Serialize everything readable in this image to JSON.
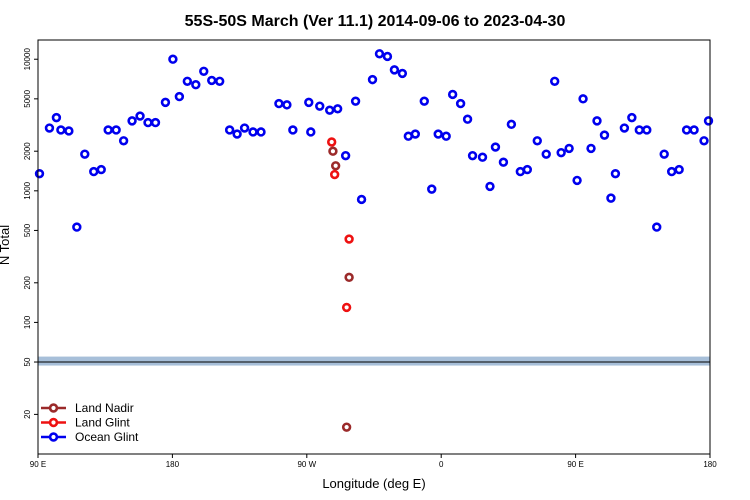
{
  "chart_data": {
    "type": "scatter",
    "title": "55S-50S March (Ver 11.1)   2014-09-06 to 2023-04-30",
    "xlabel": "Longitude (deg E)",
    "ylabel": "N Total",
    "x_scale": "longitude",
    "xlim": [
      -90,
      180
    ],
    "x_ticks": [
      {
        "value": -90,
        "label": "90 E"
      },
      {
        "value": -36,
        "label": "180"
      },
      {
        "value": 18,
        "label": "90 W"
      },
      {
        "value": 72,
        "label": "0"
      },
      {
        "value": 126,
        "label": "90 E"
      },
      {
        "value": 180,
        "label": "180"
      }
    ],
    "y_scale": "log",
    "ylim": [
      10,
      14000
    ],
    "y_ticks": [
      {
        "value": 20,
        "label": "20"
      },
      {
        "value": 50,
        "label": "50"
      },
      {
        "value": 100,
        "label": "100"
      },
      {
        "value": 200,
        "label": "200"
      },
      {
        "value": 500,
        "label": "500"
      },
      {
        "value": 1000,
        "label": "1000"
      },
      {
        "value": 2000,
        "label": "2000"
      },
      {
        "value": 5000,
        "label": "5000"
      },
      {
        "value": 10000,
        "label": "10000"
      }
    ],
    "reference_band": {
      "y_low": 47,
      "y_high": 55,
      "color": "#a7bfd9",
      "line_value": 50,
      "line_color": "#000000"
    },
    "legend_position": "bottom-left",
    "series": [
      {
        "name": "Land Nadir",
        "color": "#9b2a2a",
        "points": [
          [
            28.5,
            2000
          ],
          [
            29.6,
            1550
          ],
          [
            35,
            220
          ],
          [
            34,
            16
          ]
        ]
      },
      {
        "name": "Land Glint",
        "color": "#ee1111",
        "points": [
          [
            28,
            2350
          ],
          [
            29.2,
            1330
          ],
          [
            35,
            430
          ],
          [
            34,
            130
          ]
        ]
      },
      {
        "name": "Ocean Glint",
        "color": "#0000ee",
        "points": [
          [
            -89.4,
            1350
          ],
          [
            -85.4,
            3000
          ],
          [
            -82.6,
            3600
          ],
          [
            -80.8,
            2900
          ],
          [
            -77.6,
            2850
          ],
          [
            -74.4,
            530
          ],
          [
            -71.2,
            1900
          ],
          [
            -67.6,
            1400
          ],
          [
            -64.6,
            1450
          ],
          [
            -61.8,
            2900
          ],
          [
            -58.6,
            2900
          ],
          [
            -55.6,
            2400
          ],
          [
            -52.2,
            3400
          ],
          [
            -49.0,
            3700
          ],
          [
            -45.8,
            3300
          ],
          [
            -42.8,
            3300
          ],
          [
            -38.8,
            4700
          ],
          [
            -35.8,
            10000
          ],
          [
            -33.2,
            5200
          ],
          [
            -30.0,
            6800
          ],
          [
            -26.6,
            6400
          ],
          [
            -23.4,
            8100
          ],
          [
            -20.2,
            6900
          ],
          [
            -17.0,
            6800
          ],
          [
            -13.0,
            2900
          ],
          [
            -10.0,
            2700
          ],
          [
            -7.0,
            3000
          ],
          [
            -3.6,
            2800
          ],
          [
            -0.4,
            2800
          ],
          [
            6.8,
            4600
          ],
          [
            10.0,
            4500
          ],
          [
            12.4,
            2900
          ],
          [
            18.8,
            4700
          ],
          [
            19.6,
            2800
          ],
          [
            23.2,
            4400
          ],
          [
            27.2,
            4100
          ],
          [
            30.4,
            4200
          ],
          [
            33.6,
            1850
          ],
          [
            37.6,
            4800
          ],
          [
            40.0,
            860
          ],
          [
            44.4,
            7000
          ],
          [
            47.2,
            11000
          ],
          [
            50.4,
            10500
          ],
          [
            53.2,
            8300
          ],
          [
            56.4,
            7800
          ],
          [
            58.8,
            2600
          ],
          [
            61.6,
            2700
          ],
          [
            65.2,
            4800
          ],
          [
            68.2,
            1030
          ],
          [
            70.8,
            2700
          ],
          [
            74.0,
            2600
          ],
          [
            76.6,
            5400
          ],
          [
            79.8,
            4600
          ],
          [
            82.6,
            3500
          ],
          [
            84.6,
            1850
          ],
          [
            88.6,
            1800
          ],
          [
            91.6,
            1080
          ],
          [
            93.8,
            2150
          ],
          [
            97.0,
            1650
          ],
          [
            100.2,
            3200
          ],
          [
            103.8,
            1400
          ],
          [
            106.6,
            1450
          ],
          [
            110.6,
            2400
          ],
          [
            114.2,
            1900
          ],
          [
            117.6,
            6800
          ],
          [
            120.2,
            1950
          ],
          [
            123.4,
            2100
          ],
          [
            126.6,
            1200
          ],
          [
            129.0,
            5000
          ],
          [
            132.2,
            2100
          ],
          [
            134.6,
            3400
          ],
          [
            137.6,
            2650
          ],
          [
            140.2,
            880
          ],
          [
            142.0,
            1350
          ],
          [
            145.6,
            3000
          ],
          [
            148.6,
            3600
          ],
          [
            151.6,
            2900
          ],
          [
            154.6,
            2900
          ],
          [
            158.6,
            530
          ],
          [
            161.6,
            1900
          ],
          [
            164.6,
            1400
          ],
          [
            167.6,
            1450
          ],
          [
            170.6,
            2900
          ],
          [
            173.6,
            2900
          ],
          [
            177.6,
            2400
          ],
          [
            179.4,
            3400
          ],
          [
            182.6,
            3700
          ],
          [
            185.6,
            3300
          ],
          [
            188.6,
            3300
          ],
          [
            191.6,
            4700
          ],
          [
            194.6,
            10000
          ]
        ]
      }
    ]
  }
}
